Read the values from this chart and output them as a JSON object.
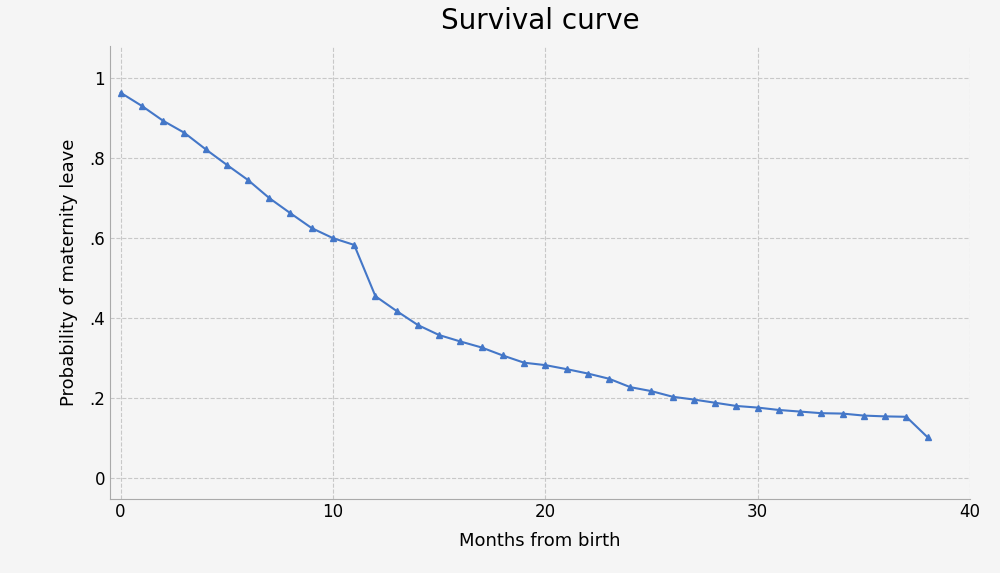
{
  "title": "Survival curve",
  "xlabel": "Months from birth",
  "ylabel": "Probability of maternity leave",
  "x": [
    0,
    1,
    2,
    3,
    4,
    5,
    6,
    7,
    8,
    9,
    10,
    11,
    12,
    13,
    14,
    15,
    16,
    17,
    18,
    19,
    20,
    21,
    22,
    23,
    24,
    25,
    26,
    27,
    28,
    29,
    30,
    31,
    32,
    33,
    34,
    35,
    36,
    37,
    38
  ],
  "y": [
    0.963,
    0.93,
    0.893,
    0.863,
    0.822,
    0.783,
    0.745,
    0.7,
    0.662,
    0.625,
    0.6,
    0.583,
    0.455,
    0.418,
    0.383,
    0.358,
    0.342,
    0.327,
    0.307,
    0.289,
    0.283,
    0.273,
    0.262,
    0.249,
    0.228,
    0.218,
    0.204,
    0.197,
    0.189,
    0.181,
    0.177,
    0.171,
    0.167,
    0.163,
    0.162,
    0.157,
    0.155,
    0.154,
    0.103
  ],
  "line_color": "#4477C8",
  "marker": "^",
  "marker_size": 5,
  "linewidth": 1.5,
  "xlim": [
    -0.5,
    40
  ],
  "ylim": [
    -0.05,
    1.08
  ],
  "xticks": [
    0,
    10,
    20,
    30,
    40
  ],
  "yticks": [
    0,
    0.2,
    0.4,
    0.6,
    0.8,
    1.0
  ],
  "ytick_labels": [
    "0",
    ".2",
    ".4",
    ".6",
    ".8",
    "1"
  ],
  "grid_color": "#c8c8c8",
  "grid_linestyle": "--",
  "background_color": "#f5f5f5",
  "title_fontsize": 20,
  "label_fontsize": 13,
  "tick_fontsize": 12
}
